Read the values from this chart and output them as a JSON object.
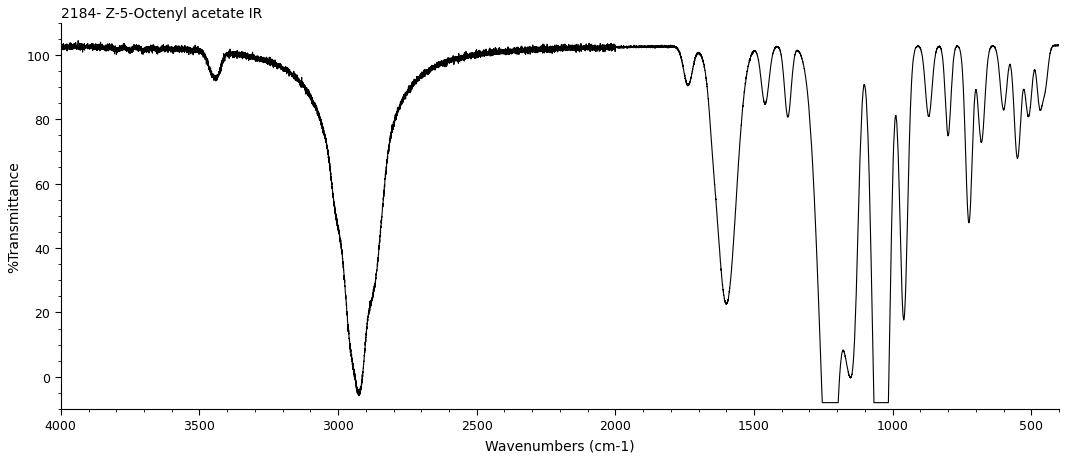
{
  "title": "2184- Z-5-Octenyl acetate IR",
  "xlabel": "Wavenumbers (cm-1)",
  "ylabel": "%Transmittance",
  "xlim": [
    4000,
    400
  ],
  "ylim": [
    -10,
    110
  ],
  "yticks": [
    0,
    20,
    40,
    60,
    80,
    100
  ],
  "xticks": [
    4000,
    3500,
    3000,
    2500,
    2000,
    1500,
    1000,
    500
  ],
  "background_color": "#ffffff",
  "line_color": "#000000",
  "title_fontsize": 10,
  "axis_fontsize": 10,
  "tick_fontsize": 9
}
